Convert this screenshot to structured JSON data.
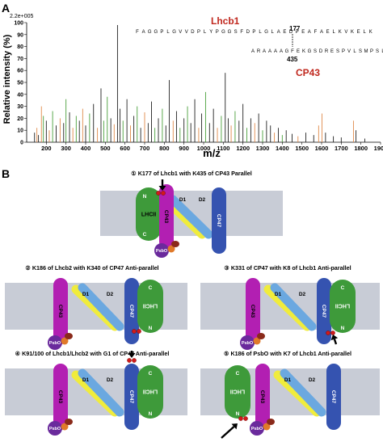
{
  "panel_a": {
    "label": "A",
    "scale_label": "2.2e+005",
    "ylabel": "Relative intensity (%)",
    "xlabel": "m/z",
    "peptide_1": {
      "name": "Lhcb1",
      "sequence": [
        "F",
        "A",
        "G",
        "G",
        "P",
        "L",
        "G",
        "V",
        "V",
        "D",
        "P",
        "L",
        "Y",
        "P",
        "G",
        "G",
        "S",
        "F",
        "D",
        "P",
        "L",
        "G",
        "L",
        "A",
        "E",
        "D",
        "P",
        "E",
        "A",
        "F",
        "A",
        "E",
        "L",
        "K",
        "V",
        "K",
        "E",
        "L",
        "K"
      ],
      "crosslink_residue": "177"
    },
    "peptide_2": {
      "name": "CP43",
      "sequence": [
        "A",
        "R",
        "A",
        "A",
        "A",
        "A",
        "G",
        "F",
        "E",
        "K",
        "G",
        "S",
        "D",
        "R",
        "E",
        "S",
        "P",
        "V",
        "L",
        "S",
        "M",
        "P",
        "S",
        "L",
        "D"
      ],
      "crosslink_residue": "435"
    },
    "colors": {
      "lhcb1": "#c0281e",
      "cp43": "#c0281e",
      "orange": "#e08a4a",
      "green": "#4aa03c"
    }
  },
  "chart_data": {
    "type": "bar",
    "title": "",
    "xlabel": "m/z",
    "ylabel": "Relative intensity (%)",
    "xlim": [
      100,
      1900
    ],
    "ylim": [
      0,
      100
    ],
    "x_ticks": [
      200,
      300,
      400,
      500,
      600,
      700,
      800,
      900,
      1000,
      1100,
      1200,
      1300,
      1400,
      1500,
      1600,
      1700,
      1800,
      1900
    ],
    "y_ticks": [
      0,
      10,
      20,
      30,
      40,
      50,
      60,
      70,
      80,
      90,
      100
    ],
    "peaks": [
      {
        "x": 140,
        "y": 8,
        "c": "k"
      },
      {
        "x": 152,
        "y": 12,
        "c": "o"
      },
      {
        "x": 160,
        "y": 6,
        "c": "k"
      },
      {
        "x": 175,
        "y": 30,
        "c": "o"
      },
      {
        "x": 185,
        "y": 22,
        "c": "g"
      },
      {
        "x": 200,
        "y": 18,
        "c": "k"
      },
      {
        "x": 215,
        "y": 10,
        "c": "o"
      },
      {
        "x": 232,
        "y": 26,
        "c": "g"
      },
      {
        "x": 250,
        "y": 14,
        "c": "k"
      },
      {
        "x": 270,
        "y": 20,
        "c": "o"
      },
      {
        "x": 288,
        "y": 16,
        "c": "k"
      },
      {
        "x": 300,
        "y": 36,
        "c": "g"
      },
      {
        "x": 318,
        "y": 25,
        "c": "k"
      },
      {
        "x": 335,
        "y": 12,
        "c": "o"
      },
      {
        "x": 352,
        "y": 22,
        "c": "g"
      },
      {
        "x": 368,
        "y": 18,
        "c": "k"
      },
      {
        "x": 385,
        "y": 28,
        "c": "o"
      },
      {
        "x": 400,
        "y": 14,
        "c": "k"
      },
      {
        "x": 420,
        "y": 24,
        "c": "g"
      },
      {
        "x": 440,
        "y": 32,
        "c": "k"
      },
      {
        "x": 460,
        "y": 12,
        "c": "o"
      },
      {
        "x": 478,
        "y": 45,
        "c": "k"
      },
      {
        "x": 492,
        "y": 18,
        "c": "g"
      },
      {
        "x": 510,
        "y": 38,
        "c": "g"
      },
      {
        "x": 528,
        "y": 20,
        "c": "k"
      },
      {
        "x": 545,
        "y": 15,
        "c": "o"
      },
      {
        "x": 562,
        "y": 98,
        "c": "k"
      },
      {
        "x": 575,
        "y": 28,
        "c": "k"
      },
      {
        "x": 590,
        "y": 18,
        "c": "g"
      },
      {
        "x": 610,
        "y": 36,
        "c": "k"
      },
      {
        "x": 628,
        "y": 14,
        "c": "o"
      },
      {
        "x": 645,
        "y": 22,
        "c": "k"
      },
      {
        "x": 662,
        "y": 30,
        "c": "g"
      },
      {
        "x": 680,
        "y": 12,
        "c": "k"
      },
      {
        "x": 700,
        "y": 25,
        "c": "o"
      },
      {
        "x": 718,
        "y": 16,
        "c": "k"
      },
      {
        "x": 735,
        "y": 34,
        "c": "k"
      },
      {
        "x": 752,
        "y": 12,
        "c": "g"
      },
      {
        "x": 770,
        "y": 20,
        "c": "k"
      },
      {
        "x": 790,
        "y": 28,
        "c": "g"
      },
      {
        "x": 808,
        "y": 14,
        "c": "k"
      },
      {
        "x": 825,
        "y": 52,
        "c": "k"
      },
      {
        "x": 845,
        "y": 18,
        "c": "o"
      },
      {
        "x": 862,
        "y": 26,
        "c": "k"
      },
      {
        "x": 880,
        "y": 12,
        "c": "g"
      },
      {
        "x": 900,
        "y": 20,
        "c": "k"
      },
      {
        "x": 918,
        "y": 30,
        "c": "g"
      },
      {
        "x": 935,
        "y": 16,
        "c": "k"
      },
      {
        "x": 955,
        "y": 36,
        "c": "k"
      },
      {
        "x": 975,
        "y": 12,
        "c": "o"
      },
      {
        "x": 990,
        "y": 24,
        "c": "k"
      },
      {
        "x": 1010,
        "y": 42,
        "c": "g"
      },
      {
        "x": 1030,
        "y": 16,
        "c": "k"
      },
      {
        "x": 1050,
        "y": 28,
        "c": "k"
      },
      {
        "x": 1070,
        "y": 12,
        "c": "o"
      },
      {
        "x": 1090,
        "y": 22,
        "c": "g"
      },
      {
        "x": 1110,
        "y": 58,
        "c": "k"
      },
      {
        "x": 1125,
        "y": 20,
        "c": "k"
      },
      {
        "x": 1140,
        "y": 14,
        "c": "o"
      },
      {
        "x": 1160,
        "y": 26,
        "c": "g"
      },
      {
        "x": 1180,
        "y": 18,
        "c": "k"
      },
      {
        "x": 1200,
        "y": 32,
        "c": "k"
      },
      {
        "x": 1220,
        "y": 12,
        "c": "g"
      },
      {
        "x": 1240,
        "y": 20,
        "c": "k"
      },
      {
        "x": 1260,
        "y": 16,
        "c": "o"
      },
      {
        "x": 1280,
        "y": 24,
        "c": "k"
      },
      {
        "x": 1300,
        "y": 10,
        "c": "g"
      },
      {
        "x": 1320,
        "y": 18,
        "c": "k"
      },
      {
        "x": 1340,
        "y": 14,
        "c": "k"
      },
      {
        "x": 1360,
        "y": 8,
        "c": "o"
      },
      {
        "x": 1380,
        "y": 12,
        "c": "k"
      },
      {
        "x": 1400,
        "y": 6,
        "c": "g"
      },
      {
        "x": 1420,
        "y": 10,
        "c": "k"
      },
      {
        "x": 1450,
        "y": 7,
        "c": "k"
      },
      {
        "x": 1480,
        "y": 5,
        "c": "o"
      },
      {
        "x": 1520,
        "y": 8,
        "c": "k"
      },
      {
        "x": 1560,
        "y": 6,
        "c": "k"
      },
      {
        "x": 1585,
        "y": 14,
        "c": "o"
      },
      {
        "x": 1602,
        "y": 24,
        "c": "o"
      },
      {
        "x": 1620,
        "y": 8,
        "c": "k"
      },
      {
        "x": 1660,
        "y": 5,
        "c": "k"
      },
      {
        "x": 1700,
        "y": 4,
        "c": "k"
      },
      {
        "x": 1762,
        "y": 18,
        "c": "o"
      },
      {
        "x": 1775,
        "y": 10,
        "c": "k"
      },
      {
        "x": 1820,
        "y": 3,
        "c": "k"
      }
    ]
  },
  "panel_b": {
    "label": "B",
    "scenarios": [
      {
        "title": "① K177 of Lhcb1 with K435 of CP43  Parallel"
      },
      {
        "title": "② K186 of Lhcb2 with K340 of CP47  Anti-parallel"
      },
      {
        "title": "③ K331 of CP47 with K8 of Lhcb1 Anti-parallel"
      },
      {
        "title": "④ K91/100 of Lhcb1/Lhcb2 with G1 of CP47 Anti-parallel"
      },
      {
        "title": "⑤ K186 of PsbO with K7 of Lhcb1 Anti-parallel"
      }
    ],
    "labels": {
      "lhcii": "LHCII",
      "cp43": "CP43",
      "cp47": "CP47",
      "d1": "D1",
      "d2": "D2",
      "psbo": "PsbO",
      "n": "N",
      "c": "C"
    },
    "colors": {
      "membrane": "#c8ccd6",
      "lhcii": "#3e9a3a",
      "cp43": "#b21fb2",
      "cp47": "#3553b0",
      "d1": "#6ba8e0",
      "d2": "#f0ec3c",
      "psbo": "#6a2a9c",
      "dot": "#d11a1a",
      "orange_blob": "#e07a2a",
      "brown_blob": "#8a2a1a"
    }
  }
}
